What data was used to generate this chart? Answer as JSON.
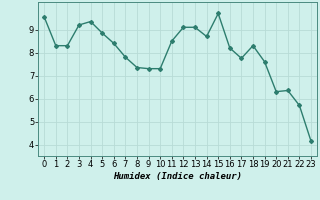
{
  "x": [
    0,
    1,
    2,
    3,
    4,
    5,
    6,
    7,
    8,
    9,
    10,
    11,
    12,
    13,
    14,
    15,
    16,
    17,
    18,
    19,
    20,
    21,
    22,
    23
  ],
  "y": [
    9.55,
    8.3,
    8.3,
    9.2,
    9.35,
    8.85,
    8.4,
    7.8,
    7.35,
    7.3,
    7.3,
    8.5,
    9.1,
    9.1,
    8.7,
    9.7,
    8.2,
    7.75,
    8.3,
    7.6,
    6.3,
    6.35,
    5.7,
    4.15
  ],
  "line_color": "#2d7d6e",
  "marker": "D",
  "marker_size": 2.0,
  "line_width": 1.0,
  "bg_color": "#cff0eb",
  "grid_color": "#b8dbd6",
  "xlabel": "Humidex (Indice chaleur)",
  "ylim": [
    3.5,
    10.2
  ],
  "xlim": [
    -0.5,
    23.5
  ],
  "yticks": [
    4,
    5,
    6,
    7,
    8,
    9
  ],
  "xticks": [
    0,
    1,
    2,
    3,
    4,
    5,
    6,
    7,
    8,
    9,
    10,
    11,
    12,
    13,
    14,
    15,
    16,
    17,
    18,
    19,
    20,
    21,
    22,
    23
  ],
  "xlabel_fontsize": 6.5,
  "tick_fontsize": 6.0
}
